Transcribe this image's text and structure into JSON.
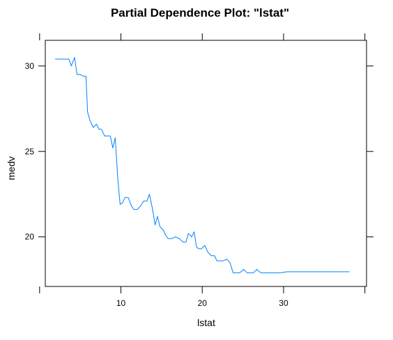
{
  "chart_data": {
    "type": "line",
    "title": "Partial Dependence Plot: \"lstat\"",
    "xlabel": "lstat",
    "ylabel": "medv",
    "xlim": [
      0.7,
      40.2
    ],
    "ylim": [
      17.1,
      31.5
    ],
    "x_ticks": [
      10,
      20,
      30
    ],
    "y_ticks": [
      20,
      25,
      30
    ],
    "x_tick_marks": [
      0,
      10,
      20,
      30,
      40
    ],
    "grid": false,
    "legend": "none",
    "colors": {
      "line": "#0080ff",
      "axis": "#000000"
    },
    "series": [
      {
        "x": [
          1.9,
          2.5,
          3.1,
          3.6,
          3.9,
          4.3,
          4.6,
          5.0,
          5.4,
          5.7,
          5.9,
          6.2,
          6.6,
          7.0,
          7.3,
          7.6,
          8.0,
          8.3,
          8.7,
          9.0,
          9.3,
          9.6,
          9.9,
          10.2,
          10.5,
          10.9,
          11.3,
          11.6,
          12.0,
          12.4,
          12.8,
          13.2,
          13.5,
          13.9,
          14.2,
          14.5,
          14.8,
          15.2,
          15.5,
          15.8,
          16.3,
          16.7,
          17.2,
          17.6,
          18.0,
          18.3,
          18.7,
          19.0,
          19.3,
          19.6,
          19.9,
          20.3,
          20.7,
          21.1,
          21.5,
          21.8,
          22.2,
          22.6,
          23.0,
          23.4,
          23.8,
          24.2,
          24.6,
          25.1,
          25.5,
          25.9,
          26.3,
          26.7,
          27.2,
          27.7,
          28.3,
          29.0,
          29.6,
          30.4,
          38.1
        ],
        "y": [
          30.4,
          30.4,
          30.4,
          30.4,
          30.0,
          30.5,
          29.5,
          29.5,
          29.4,
          29.4,
          27.3,
          26.8,
          26.4,
          26.6,
          26.3,
          26.3,
          25.9,
          25.9,
          25.9,
          25.2,
          25.8,
          23.5,
          21.9,
          22.0,
          22.3,
          22.3,
          21.8,
          21.6,
          21.6,
          21.8,
          22.1,
          22.1,
          22.5,
          21.6,
          20.7,
          21.2,
          20.6,
          20.4,
          20.1,
          19.9,
          19.9,
          20.0,
          19.9,
          19.7,
          19.7,
          20.2,
          20.0,
          20.3,
          19.4,
          19.3,
          19.3,
          19.5,
          19.1,
          18.9,
          18.9,
          18.6,
          18.6,
          18.6,
          18.7,
          18.5,
          17.9,
          17.9,
          17.9,
          18.1,
          17.9,
          17.9,
          17.9,
          18.1,
          17.9,
          17.9,
          17.9,
          17.9,
          17.9,
          17.96,
          17.96
        ]
      }
    ]
  }
}
